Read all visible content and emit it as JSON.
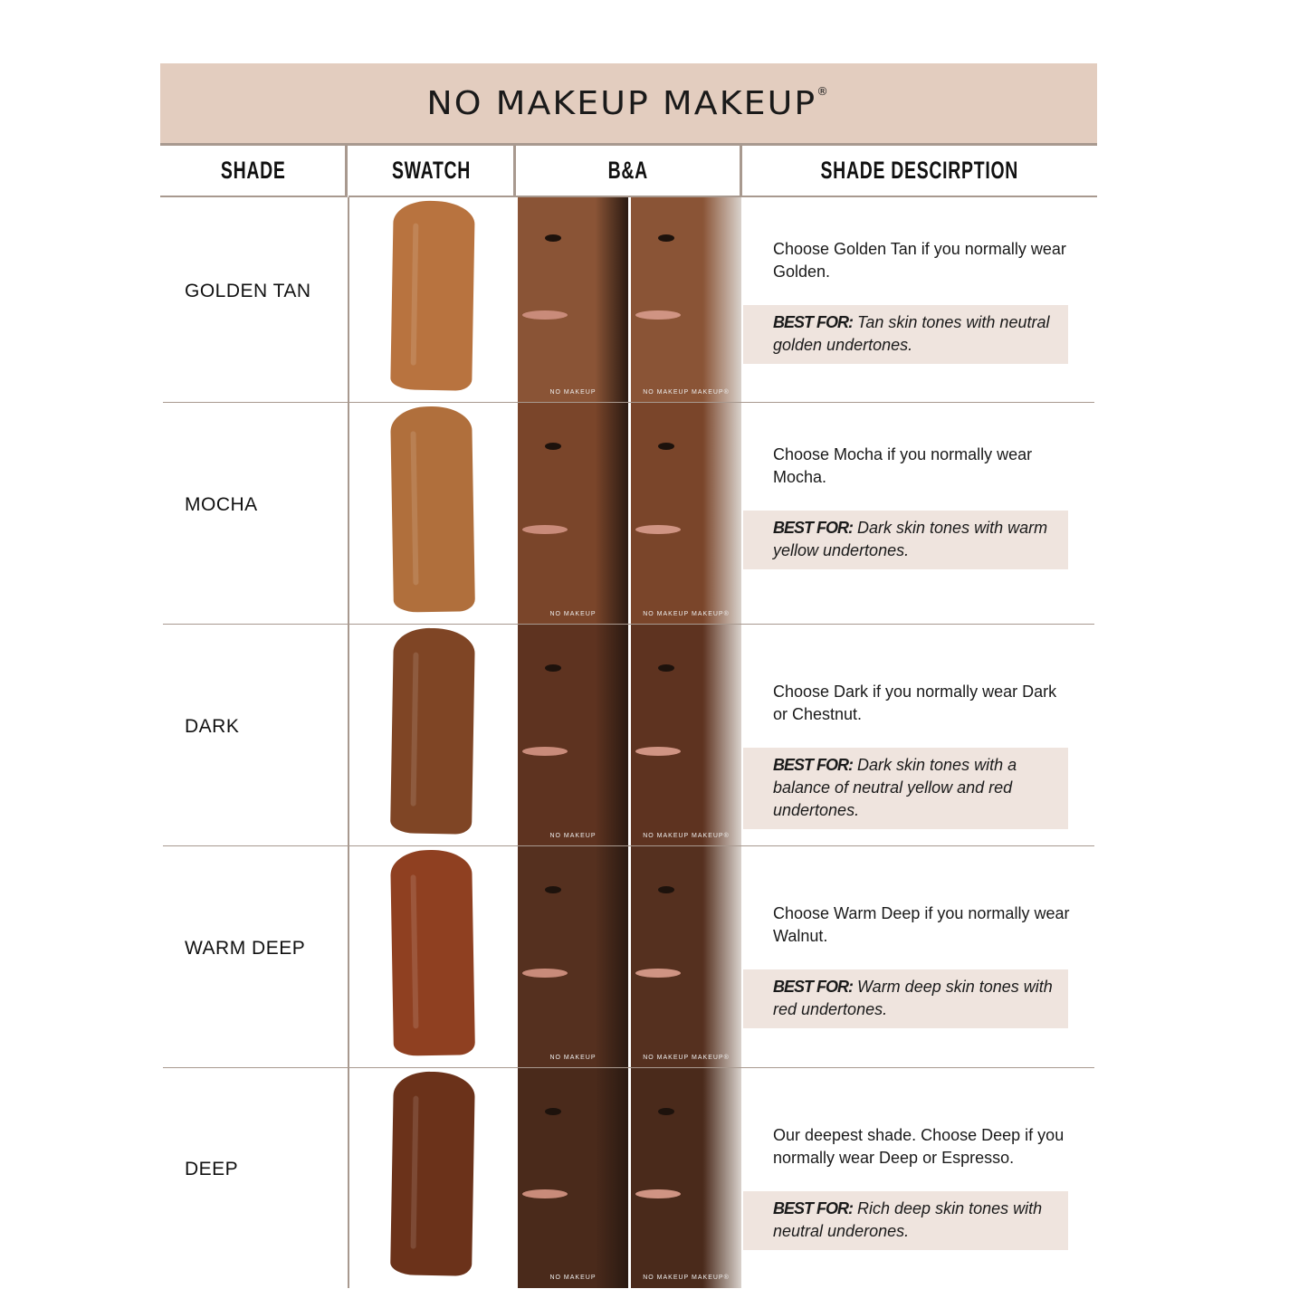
{
  "title": "NO MAKEUP MAKEUP",
  "title_mark": "®",
  "headers": {
    "shade": "SHADE",
    "swatch": "SWATCH",
    "ba": "B&A",
    "description": "SHADE DESCIRPTION"
  },
  "photo_labels": {
    "before": "NO MAKEUP",
    "after": "NO MAKEUP MAKEUP®"
  },
  "best_for_label": "BEST FOR:",
  "colors": {
    "banner": "#e3cdbf",
    "divider": "#a8998f",
    "best_for_bg": "#efe4de"
  },
  "shades": [
    {
      "name": "GOLDEN TAN",
      "swatch_color": "#b8733f",
      "skin_color": "#8a5436",
      "description": "Choose Golden Tan if you normally wear Golden.",
      "best_for": "Tan skin tones with neutral golden undertones."
    },
    {
      "name": "MOCHA",
      "swatch_color": "#b06f3c",
      "skin_color": "#7a452a",
      "description": "Choose Mocha if you normally wear Mocha.",
      "best_for": "Dark skin tones with warm yellow undertones."
    },
    {
      "name": "DARK",
      "swatch_color": "#7f4525",
      "skin_color": "#5e3320",
      "description": "Choose Dark if you normally wear Dark or Chestnut.",
      "best_for": "Dark skin tones with a balance of neutral yellow and red undertones."
    },
    {
      "name": "WARM DEEP",
      "swatch_color": "#8f4021",
      "skin_color": "#55301f",
      "description": "Choose Warm Deep if you normally wear Walnut.",
      "best_for": "Warm deep skin tones with red undertones."
    },
    {
      "name": "DEEP",
      "swatch_color": "#6b321a",
      "skin_color": "#4a2a1b",
      "description": "Our deepest shade. Choose Deep if you normally wear Deep or Espresso.",
      "best_for": "Rich deep skin tones with neutral underones."
    }
  ]
}
